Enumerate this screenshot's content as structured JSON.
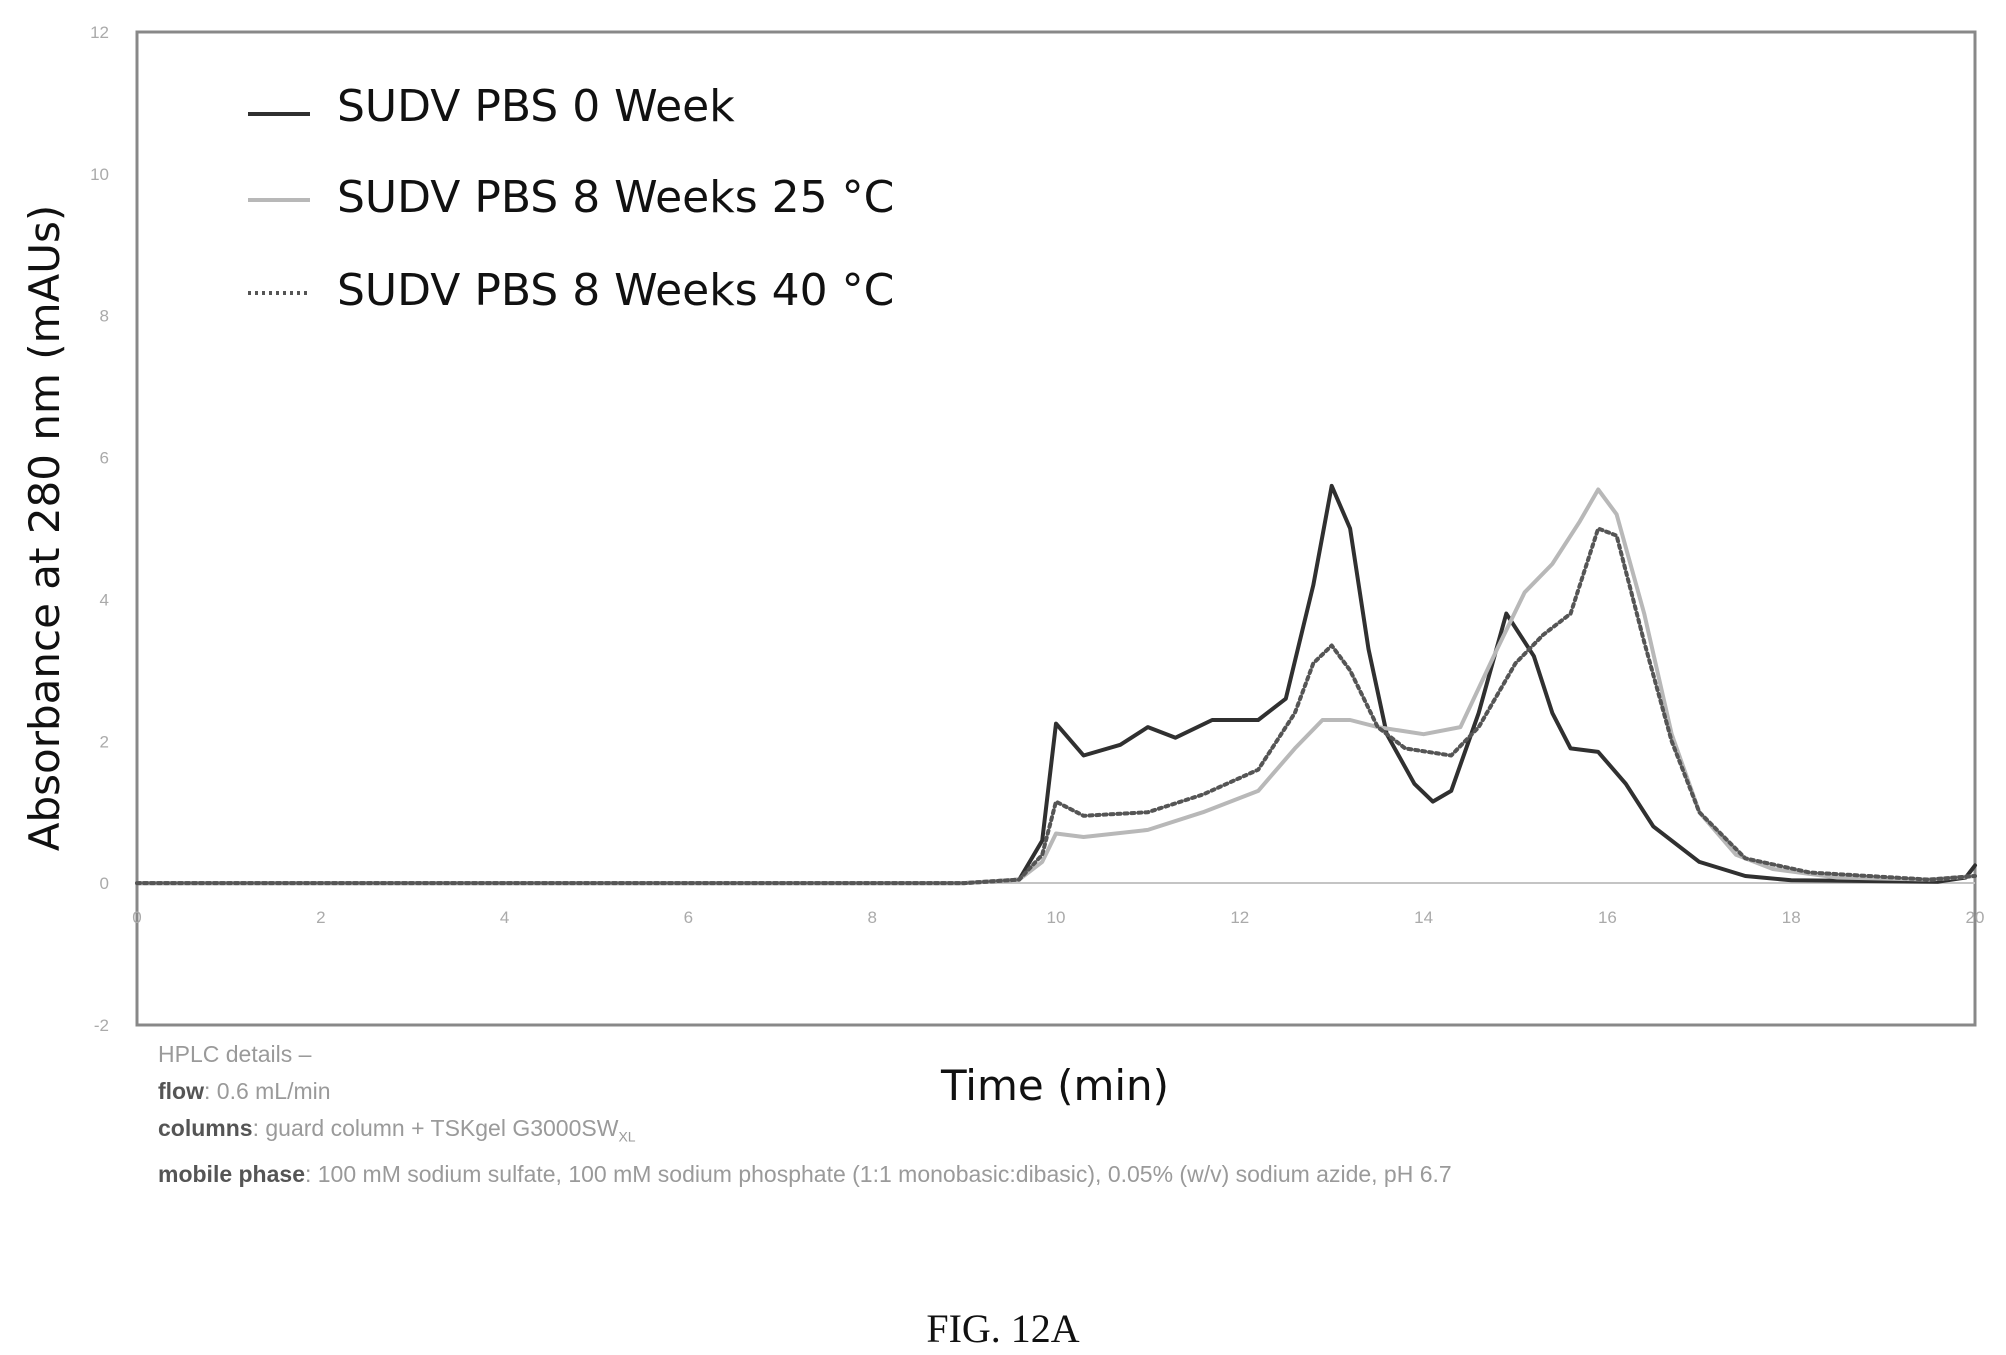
{
  "chart_data": {
    "type": "line",
    "xlabel": "Time (min)",
    "ylabel": "Absorbance at 280 nm (mAUs)",
    "xlim": [
      0,
      20
    ],
    "ylim": [
      -2,
      12
    ],
    "x_ticks": [
      "0",
      "2",
      "4",
      "6",
      "8",
      "10",
      "12",
      "14",
      "16",
      "18",
      "20"
    ],
    "y_ticks": [
      "-2",
      "0",
      "2",
      "4",
      "6",
      "8",
      "10",
      "12"
    ],
    "grid": false,
    "legend_position": "top-left",
    "series": [
      {
        "name": "SUDV PBS 0 Week",
        "color": "#303030",
        "dash": "solid",
        "points": [
          [
            0,
            0
          ],
          [
            9,
            0
          ],
          [
            9.6,
            0.05
          ],
          [
            9.85,
            0.6
          ],
          [
            10.0,
            2.25
          ],
          [
            10.3,
            1.8
          ],
          [
            10.7,
            1.95
          ],
          [
            11.0,
            2.2
          ],
          [
            11.3,
            2.05
          ],
          [
            11.7,
            2.3
          ],
          [
            12.2,
            2.3
          ],
          [
            12.5,
            2.6
          ],
          [
            12.8,
            4.2
          ],
          [
            13.0,
            5.6
          ],
          [
            13.2,
            5.0
          ],
          [
            13.4,
            3.3
          ],
          [
            13.6,
            2.1
          ],
          [
            13.9,
            1.4
          ],
          [
            14.1,
            1.15
          ],
          [
            14.3,
            1.3
          ],
          [
            14.6,
            2.4
          ],
          [
            14.9,
            3.8
          ],
          [
            15.2,
            3.2
          ],
          [
            15.4,
            2.4
          ],
          [
            15.6,
            1.9
          ],
          [
            15.9,
            1.85
          ],
          [
            16.2,
            1.4
          ],
          [
            16.5,
            0.8
          ],
          [
            17.0,
            0.3
          ],
          [
            17.5,
            0.1
          ],
          [
            18.0,
            0.04
          ],
          [
            19.6,
            0.02
          ],
          [
            19.9,
            0.08
          ],
          [
            20,
            0.25
          ]
        ]
      },
      {
        "name": "SUDV PBS 8 Weeks 25 °C",
        "color": "#b8b8b8",
        "dash": "solid",
        "points": [
          [
            0,
            0
          ],
          [
            9,
            0
          ],
          [
            9.6,
            0.05
          ],
          [
            9.85,
            0.3
          ],
          [
            10.0,
            0.7
          ],
          [
            10.3,
            0.65
          ],
          [
            11.0,
            0.75
          ],
          [
            11.6,
            1.0
          ],
          [
            12.2,
            1.3
          ],
          [
            12.6,
            1.9
          ],
          [
            12.9,
            2.3
          ],
          [
            13.2,
            2.3
          ],
          [
            13.5,
            2.2
          ],
          [
            14.0,
            2.1
          ],
          [
            14.4,
            2.2
          ],
          [
            14.8,
            3.3
          ],
          [
            15.1,
            4.1
          ],
          [
            15.4,
            4.5
          ],
          [
            15.7,
            5.1
          ],
          [
            15.9,
            5.55
          ],
          [
            16.1,
            5.2
          ],
          [
            16.4,
            3.8
          ],
          [
            16.7,
            2.1
          ],
          [
            17.0,
            1.0
          ],
          [
            17.4,
            0.4
          ],
          [
            17.8,
            0.2
          ],
          [
            18.5,
            0.08
          ],
          [
            19.5,
            0.05
          ],
          [
            20,
            0.1
          ]
        ]
      },
      {
        "name": "SUDV PBS 8 Weeks 40 °C",
        "color": "#555555",
        "dash": "dotted",
        "points": [
          [
            0,
            0
          ],
          [
            9,
            0
          ],
          [
            9.6,
            0.05
          ],
          [
            9.85,
            0.4
          ],
          [
            10.0,
            1.15
          ],
          [
            10.3,
            0.95
          ],
          [
            11.0,
            1.0
          ],
          [
            11.6,
            1.25
          ],
          [
            12.2,
            1.6
          ],
          [
            12.6,
            2.4
          ],
          [
            12.8,
            3.1
          ],
          [
            13.0,
            3.35
          ],
          [
            13.2,
            3.0
          ],
          [
            13.5,
            2.2
          ],
          [
            13.8,
            1.9
          ],
          [
            14.3,
            1.8
          ],
          [
            14.6,
            2.2
          ],
          [
            15.0,
            3.1
          ],
          [
            15.3,
            3.5
          ],
          [
            15.6,
            3.8
          ],
          [
            15.9,
            5.0
          ],
          [
            16.1,
            4.9
          ],
          [
            16.4,
            3.4
          ],
          [
            16.7,
            2.0
          ],
          [
            17.0,
            1.0
          ],
          [
            17.5,
            0.35
          ],
          [
            18.2,
            0.15
          ],
          [
            19.5,
            0.05
          ],
          [
            20,
            0.1
          ]
        ]
      }
    ]
  },
  "hplc": {
    "title": "HPLC details –",
    "flow_label": "flow",
    "flow_value": ": 0.6 mL/min",
    "columns_label": "columns",
    "columns_value": ": guard column + TSKgel G3000SW",
    "columns_sub": "XL",
    "mobile_label": "mobile phase",
    "mobile_value": ": 100 mM sodium sulfate, 100 mM sodium phosphate (1:1 monobasic:dibasic), 0.05% (w/v) sodium azide, pH 6.7"
  },
  "figure_caption": "FIG. 12A"
}
